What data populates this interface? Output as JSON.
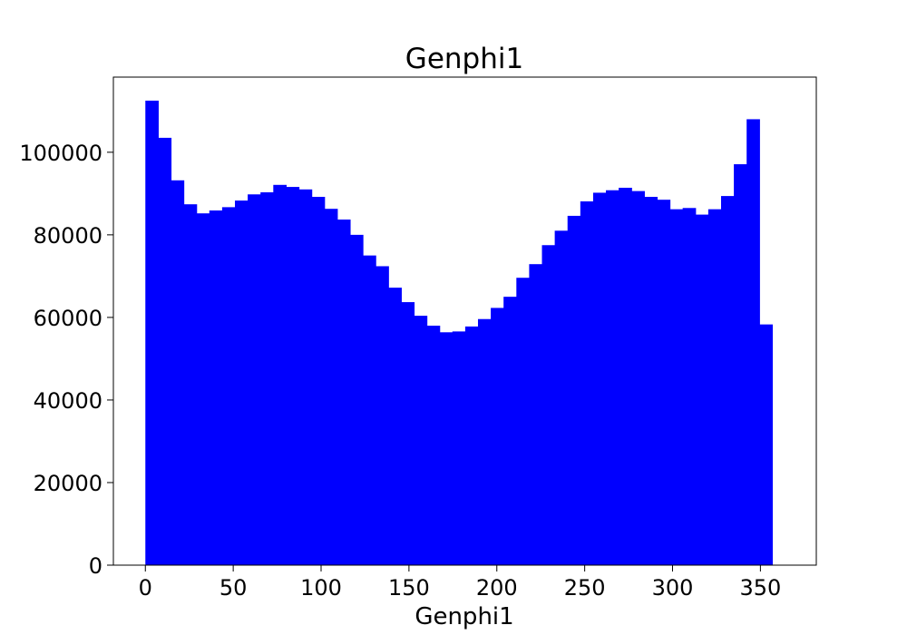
{
  "chart_data": {
    "type": "bar",
    "title": "Genphi1",
    "xlabel": "Genphi1",
    "ylabel": "",
    "xlim": [
      -18.2,
      381.8
    ],
    "ylim": [
      0,
      118200
    ],
    "x_ticks": [
      0,
      50,
      100,
      150,
      200,
      250,
      300,
      350
    ],
    "y_ticks": [
      0,
      20000,
      40000,
      60000,
      80000,
      100000
    ],
    "grid": false,
    "legend": "none",
    "bar_color": "#0000ff",
    "bin_width": 7.28,
    "bin_start": 0,
    "values": [
      112500,
      103500,
      93200,
      87400,
      85200,
      85900,
      86700,
      88300,
      89800,
      90300,
      92100,
      91600,
      91000,
      89200,
      86300,
      83700,
      80000,
      75000,
      72400,
      67200,
      63700,
      60400,
      58000,
      56400,
      56600,
      57800,
      59600,
      62300,
      65000,
      69600,
      72900,
      77500,
      81000,
      84600,
      88100,
      90200,
      90800,
      91400,
      90600,
      89200,
      88500,
      86200,
      86500,
      84900,
      86200,
      89400,
      97100,
      108000,
      58300
    ]
  }
}
